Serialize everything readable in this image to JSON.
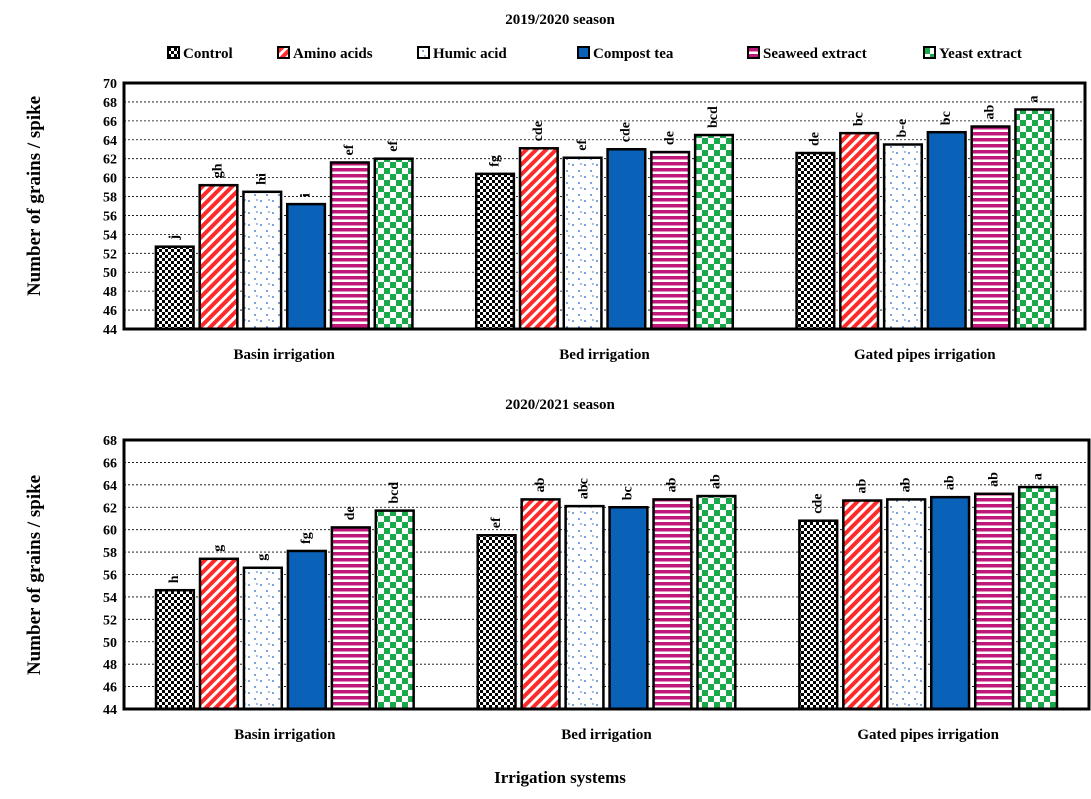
{
  "figure": {
    "xlabel": "Irrigation systems"
  },
  "legend": [
    {
      "name": "Control",
      "pattern": "checker-dark"
    },
    {
      "name": "Amino acids",
      "pattern": "diag-red"
    },
    {
      "name": "Humic acid",
      "pattern": "dots-blue"
    },
    {
      "name": "Compost tea",
      "pattern": "solid-blue"
    },
    {
      "name": "Seaweed extract",
      "pattern": "hstripe-magenta"
    },
    {
      "name": "Yeast extract",
      "pattern": "checker-green"
    }
  ],
  "colors": {
    "control": "#000000",
    "amino": "#ff2a2a",
    "humic": "#1f5fbf",
    "compost": "#0a62b8",
    "seaweed": "#c0187a",
    "yeast": "#1aa84a"
  },
  "chart_data": [
    {
      "type": "bar",
      "title": "2019/2020 season",
      "ylabel": "Number of grains / spike",
      "xlabel": "",
      "ylim": [
        44,
        70
      ],
      "yticks": [
        44,
        46,
        48,
        50,
        52,
        54,
        56,
        58,
        60,
        62,
        64,
        66,
        68,
        70
      ],
      "grid": true,
      "legend_position": "top",
      "categories": [
        "Basin irrigation",
        "Bed irrigation",
        "Gated pipes irrigation"
      ],
      "series": [
        {
          "name": "Control",
          "values": [
            52.7,
            60.4,
            62.6
          ],
          "labels": [
            "j",
            "fg",
            "de"
          ]
        },
        {
          "name": "Amino acids",
          "values": [
            59.2,
            63.1,
            64.7
          ],
          "labels": [
            "gh",
            "cde",
            "bc"
          ]
        },
        {
          "name": "Humic acid",
          "values": [
            58.5,
            62.1,
            63.5
          ],
          "labels": [
            "hi",
            "ef",
            "b-e"
          ]
        },
        {
          "name": "Compost tea",
          "values": [
            57.2,
            63.0,
            64.8
          ],
          "labels": [
            "i",
            "cde",
            "bc"
          ]
        },
        {
          "name": "Seaweed extract",
          "values": [
            61.6,
            62.7,
            65.4
          ],
          "labels": [
            "ef",
            "de",
            "ab"
          ]
        },
        {
          "name": "Yeast extract",
          "values": [
            62.0,
            64.5,
            67.2
          ],
          "labels": [
            "ef",
            "bcd",
            "a"
          ]
        }
      ]
    },
    {
      "type": "bar",
      "title": "2020/2021 season",
      "ylabel": "Number of grains / spike",
      "xlabel": "Irrigation systems",
      "ylim": [
        44,
        68
      ],
      "yticks": [
        44,
        46,
        48,
        50,
        52,
        54,
        56,
        58,
        60,
        62,
        64,
        66,
        68
      ],
      "grid": true,
      "legend_position": "top",
      "categories": [
        "Basin irrigation",
        "Bed irrigation",
        "Gated pipes irrigation"
      ],
      "series": [
        {
          "name": "Control",
          "values": [
            54.6,
            59.5,
            60.8
          ],
          "labels": [
            "h",
            "ef",
            "cde"
          ]
        },
        {
          "name": "Amino acids",
          "values": [
            57.4,
            62.7,
            62.6
          ],
          "labels": [
            "g",
            "ab",
            "ab"
          ]
        },
        {
          "name": "Humic acid",
          "values": [
            56.6,
            62.1,
            62.7
          ],
          "labels": [
            "g",
            "abc",
            "ab"
          ]
        },
        {
          "name": "Compost tea",
          "values": [
            58.1,
            62.0,
            62.9
          ],
          "labels": [
            "fg",
            "bc",
            "ab"
          ]
        },
        {
          "name": "Seaweed extract",
          "values": [
            60.2,
            62.7,
            63.2
          ],
          "labels": [
            "de",
            "ab",
            "ab"
          ]
        },
        {
          "name": "Yeast extract",
          "values": [
            61.7,
            63.0,
            63.8
          ],
          "labels": [
            "bcd",
            "ab",
            "a"
          ]
        }
      ]
    }
  ]
}
